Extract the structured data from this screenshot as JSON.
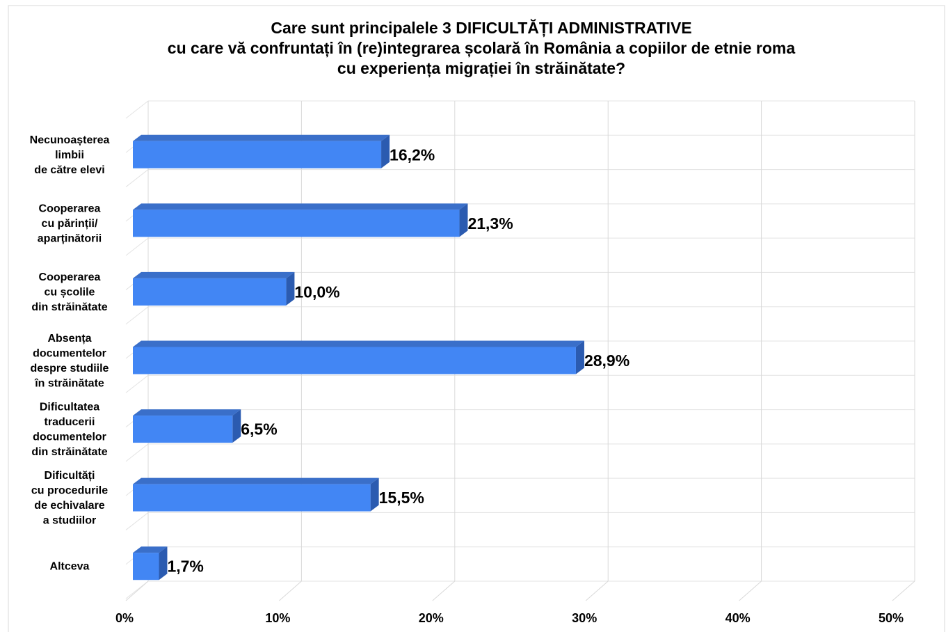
{
  "chart_data": {
    "type": "bar3d",
    "orientation": "horizontal",
    "title": [
      "Care sunt principalele 3 DIFICULTĂȚI ADMINISTRATIVE",
      "cu care vă confruntați în (re)integrarea școlară în România a copiilor de etnie roma",
      "cu experiența migrației în străinătate?"
    ],
    "categories": [
      [
        "Necunoașterea",
        "limbii",
        "de către elevi"
      ],
      [
        "Cooperarea",
        "cu părinții/",
        "aparținătorii"
      ],
      [
        "Cooperarea",
        "cu școlile",
        "din străinătate"
      ],
      [
        "Absența",
        "documentelor",
        "despre studiile",
        "în străinătate"
      ],
      [
        "Dificultatea",
        "traducerii",
        "documentelor",
        "din străinătate"
      ],
      [
        "Dificultăți",
        "cu procedurile",
        "de echivalare",
        "a studiilor"
      ],
      [
        "Altceva"
      ]
    ],
    "values": [
      16.2,
      21.3,
      10.0,
      28.9,
      6.5,
      15.5,
      1.7
    ],
    "value_labels": [
      "16,2%",
      "21,3%",
      "10,0%",
      "28,9%",
      "6,5%",
      "15,5%",
      "1,7%"
    ],
    "color": "#4286f4",
    "xlim": [
      0,
      50
    ],
    "xticks": [
      {
        "value": 0,
        "label": "0%"
      },
      {
        "value": 10,
        "label": "10%"
      },
      {
        "value": 20,
        "label": "20%"
      },
      {
        "value": 30,
        "label": "30%"
      },
      {
        "value": 40,
        "label": "40%"
      },
      {
        "value": 50,
        "label": "50%"
      }
    ],
    "grid": true
  }
}
